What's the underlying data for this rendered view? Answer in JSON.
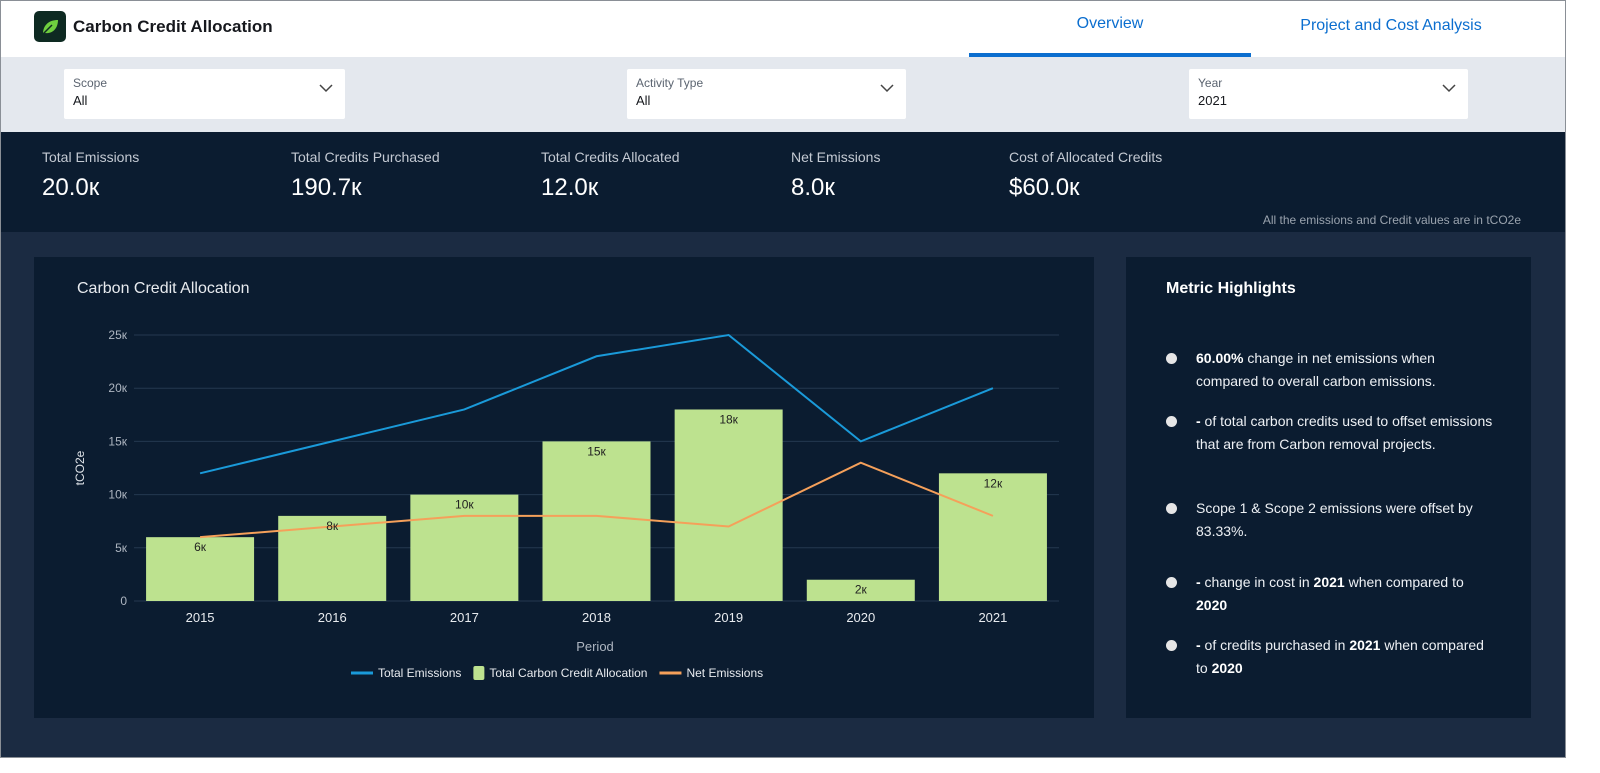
{
  "header": {
    "title": "Carbon Credit Allocation",
    "logo_icon": "leaf-icon",
    "tabs": [
      {
        "label": "Overview",
        "active": true
      },
      {
        "label": "Project and Cost Analysis",
        "active": false
      }
    ],
    "accent": "#0b6ecf"
  },
  "filters": [
    {
      "label": "Scope",
      "value": "All"
    },
    {
      "label": "Activity Type",
      "value": "All"
    },
    {
      "label": "Year",
      "value": "2021"
    }
  ],
  "kpis": [
    {
      "title": "Total Emissions",
      "value": "20.0к"
    },
    {
      "title": "Total Credits Purchased",
      "value": "190.7к"
    },
    {
      "title": "Total Credits Allocated",
      "value": "12.0к"
    },
    {
      "title": "Net Emissions",
      "value": "8.0к"
    },
    {
      "title": "Cost of Allocated Credits",
      "value": "$60.0к"
    }
  ],
  "kpi_note": "All the emissions and Credit values are in tCO2e",
  "chart_data": {
    "type": "bar",
    "title": "Carbon Credit Allocation",
    "xlabel": "Period",
    "ylabel": "tCO2e",
    "ylim": [
      0,
      25000
    ],
    "yticks": [
      "0",
      "5к",
      "10к",
      "15к",
      "20к",
      "25к"
    ],
    "grid": true,
    "legend": "bottom",
    "categories": [
      "2015",
      "2016",
      "2017",
      "2018",
      "2019",
      "2020",
      "2021"
    ],
    "series": [
      {
        "name": "Total Emissions",
        "type": "line",
        "color": "#1a9ad9",
        "values": [
          12000,
          15000,
          18000,
          23000,
          25000,
          15000,
          20000
        ]
      },
      {
        "name": "Total Carbon Credit Allocation",
        "type": "bar",
        "color": "#bde28f",
        "values": [
          6000,
          8000,
          10000,
          15000,
          18000,
          2000,
          12000
        ],
        "labels": [
          "6к",
          "8к",
          "10к",
          "15к",
          "18к",
          "2к",
          "12к"
        ]
      },
      {
        "name": "Net Emissions",
        "type": "line",
        "color": "#f5a05a",
        "values": [
          6000,
          7000,
          8000,
          8000,
          7000,
          13000,
          8000
        ]
      }
    ]
  },
  "highlights": {
    "title": "Metric Highlights",
    "items": [
      {
        "bold": "60.00%",
        "text": " change in net emissions when compared to overall carbon emissions."
      },
      {
        "bold": "-",
        "text": "  of total carbon credits used to offset emissions that are from Carbon removal projects."
      },
      {
        "bold": "",
        "text": "Scope 1 & Scope 2 emissions were offset by 83.33%."
      },
      {
        "bold": "-",
        "text": "  change in cost in ",
        "bold2": "2021",
        "text2": " when compared to ",
        "bold3": "2020"
      },
      {
        "bold": "-",
        "text": " of credits purchased in ",
        "bold2": "2021",
        "text2": " when compared to ",
        "bold3": "2020"
      }
    ]
  }
}
